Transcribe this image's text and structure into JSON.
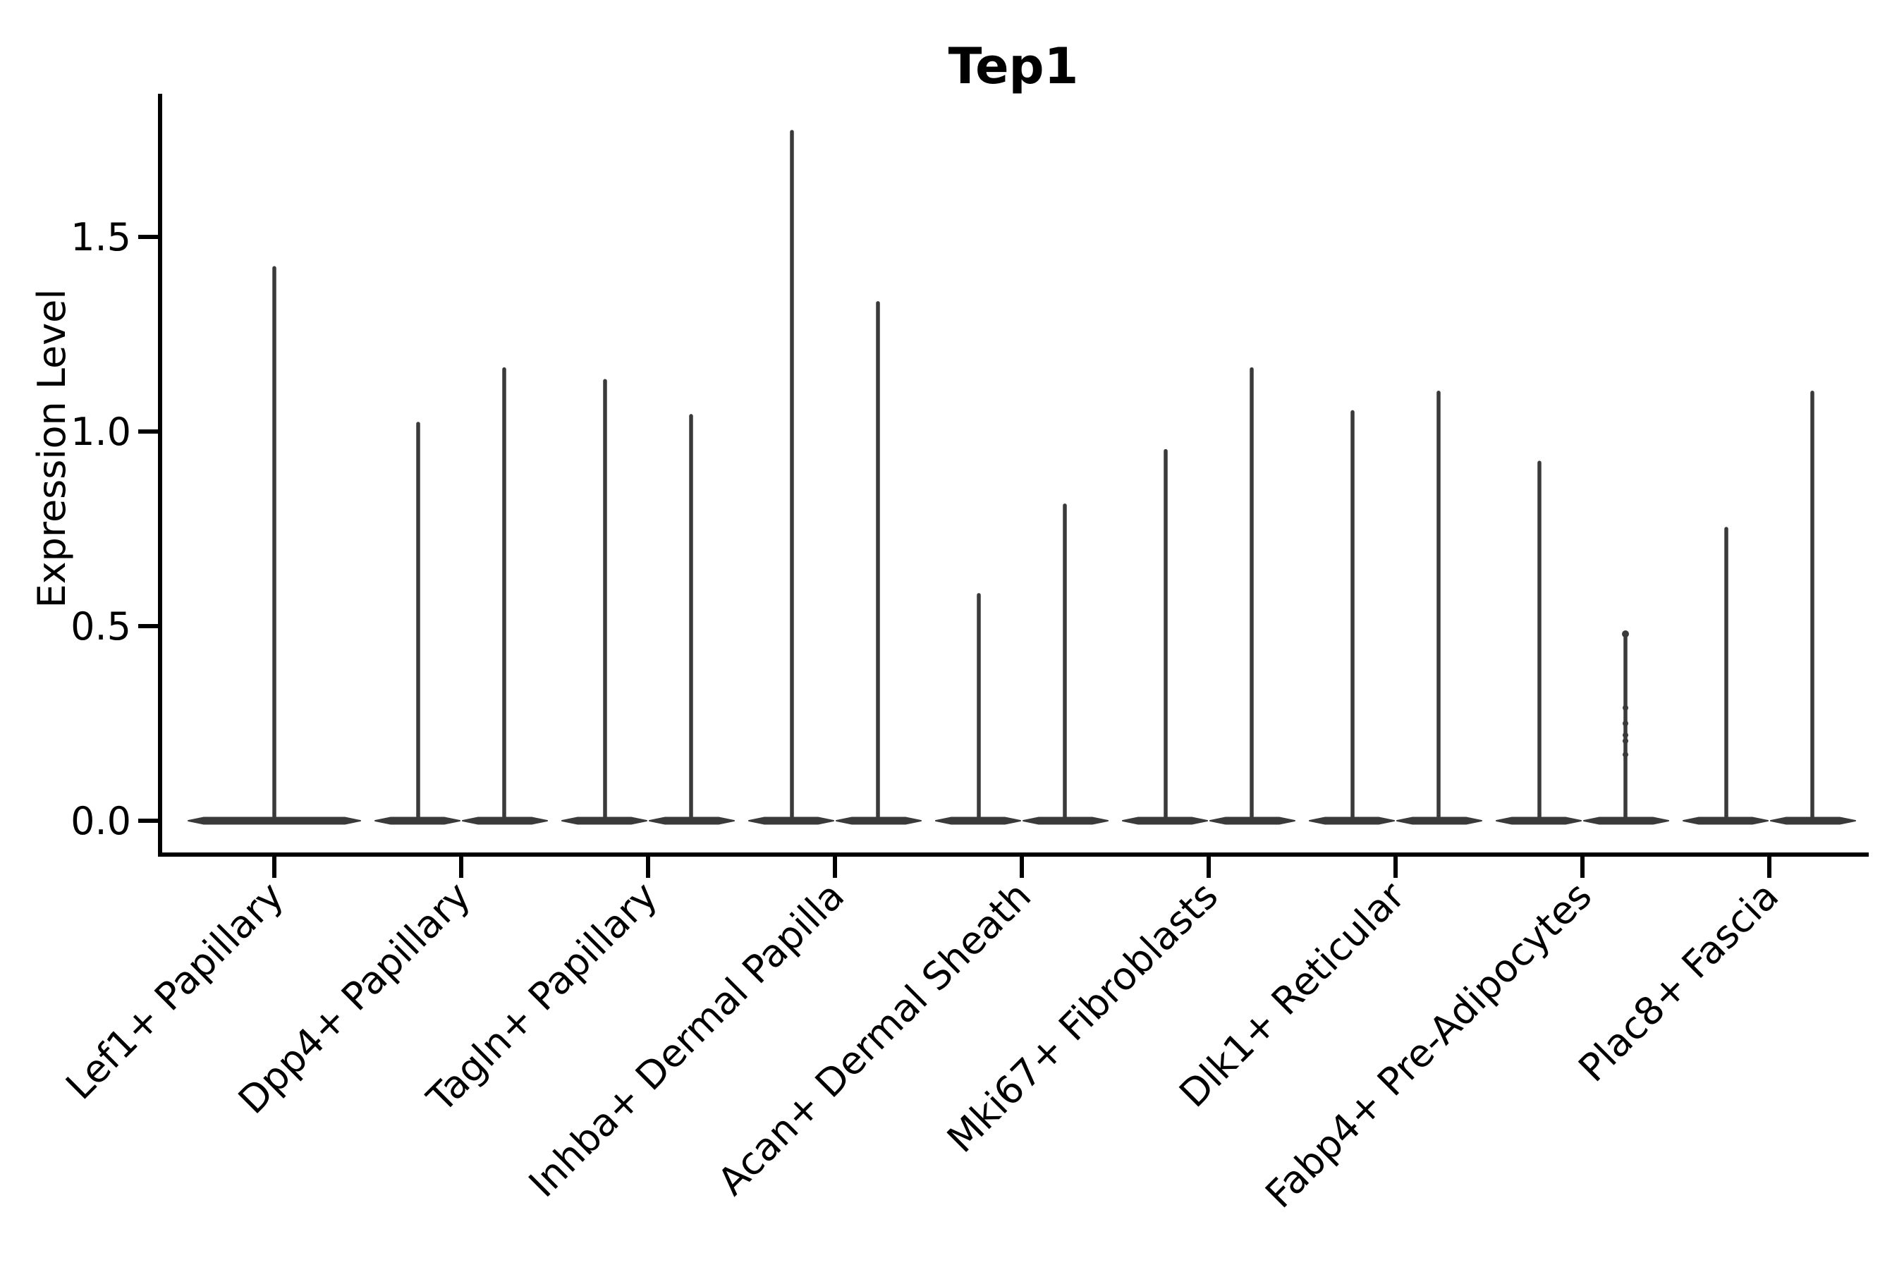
{
  "title": "Tep1",
  "chart_data": {
    "type": "violin",
    "title": "Tep1",
    "xlabel": "",
    "ylabel": "Expression Level",
    "y_ticks": [
      0.0,
      0.5,
      1.0,
      1.5
    ],
    "y_tick_labels": [
      "0.0",
      "0.5",
      "1.0",
      "1.5"
    ],
    "ylim": [
      -0.09,
      1.87
    ],
    "grid": false,
    "legend": "none",
    "categories": [
      "Lef1+ Papillary",
      "Dpp4+ Papillary",
      "Tagln+ Papillary",
      "Inhba+ Dermal Papilla",
      "Acan+ Dermal Sheath",
      "Mki67+ Fibroblasts",
      "Dlk1+ Reticular",
      "Fabp4+ Pre-Adipocytes",
      "Plac8+ Fascia"
    ],
    "groups": [
      {
        "category": "Lef1+ Papillary",
        "violins": [
          {
            "position": "center",
            "base": 0.0,
            "max": 1.42
          }
        ]
      },
      {
        "category": "Dpp4+ Papillary",
        "violins": [
          {
            "position": "left",
            "base": 0.0,
            "max": 1.02
          },
          {
            "position": "right",
            "base": 0.0,
            "max": 1.16
          }
        ]
      },
      {
        "category": "Tagln+ Papillary",
        "violins": [
          {
            "position": "left",
            "base": 0.0,
            "max": 1.13
          },
          {
            "position": "right",
            "base": 0.0,
            "max": 1.04
          }
        ]
      },
      {
        "category": "Inhba+ Dermal Papilla",
        "violins": [
          {
            "position": "left",
            "base": 0.0,
            "max": 1.77
          },
          {
            "position": "right",
            "base": 0.0,
            "max": 1.33
          }
        ]
      },
      {
        "category": "Acan+ Dermal Sheath",
        "violins": [
          {
            "position": "left",
            "base": 0.0,
            "max": 0.58
          },
          {
            "position": "right",
            "base": 0.0,
            "max": 0.81
          }
        ]
      },
      {
        "category": "Mki67+ Fibroblasts",
        "violins": [
          {
            "position": "left",
            "base": 0.0,
            "max": 0.95
          },
          {
            "position": "right",
            "base": 0.0,
            "max": 1.16
          }
        ]
      },
      {
        "category": "Dlk1+ Reticular",
        "violins": [
          {
            "position": "left",
            "base": 0.0,
            "max": 1.05
          },
          {
            "position": "right",
            "base": 0.0,
            "max": 1.1
          }
        ]
      },
      {
        "category": "Fabp4+ Pre-Adipocytes",
        "violins": [
          {
            "position": "left",
            "base": 0.0,
            "max": 0.92
          },
          {
            "position": "right",
            "base": 0.0,
            "max": 0.48,
            "points": [
              0.48,
              0.29,
              0.25,
              0.22,
              0.205,
              0.17
            ]
          }
        ]
      },
      {
        "category": "Plac8+ Fascia",
        "violins": [
          {
            "position": "left",
            "base": 0.0,
            "max": 0.75
          },
          {
            "position": "right",
            "base": 0.0,
            "max": 1.1
          }
        ]
      }
    ],
    "colors": {
      "violin": "#3a3a3a",
      "axis": "#000000",
      "text": "#000000",
      "background": "#ffffff"
    }
  }
}
